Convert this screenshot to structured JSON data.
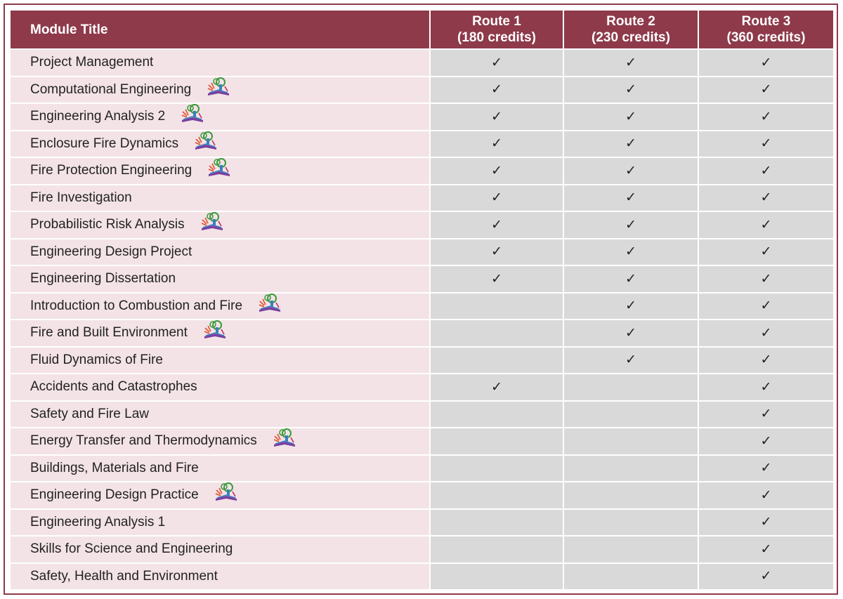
{
  "header": {
    "module_title": "Module Title",
    "routes": [
      {
        "line1": "Route 1",
        "line2": "(180 credits)"
      },
      {
        "line1": "Route 2",
        "line2": "(230 credits)"
      },
      {
        "line1": "Route 3",
        "line2": "(360 credits)"
      }
    ]
  },
  "check_glyph": "✓",
  "icon_name": "book-tree-icon",
  "colors": {
    "header_bg": "#8e3a4a",
    "name_bg": "#f3e3e6",
    "check_bg": "#d9d9d9"
  },
  "modules": [
    {
      "title": "Project Management",
      "icon": false,
      "r1": "✓",
      "r2": "✓",
      "r3": "✓"
    },
    {
      "title": "Computational Engineering",
      "icon": true,
      "r1": "✓",
      "r2": "✓",
      "r3": "✓"
    },
    {
      "title": "Engineering Analysis 2",
      "icon": true,
      "r1": "✓",
      "r2": "✓",
      "r3": "✓"
    },
    {
      "title": "Enclosure Fire Dynamics",
      "icon": true,
      "r1": "✓",
      "r2": "✓",
      "r3": "✓"
    },
    {
      "title": "Fire Protection Engineering",
      "icon": true,
      "r1": "✓",
      "r2": "✓",
      "r3": "✓"
    },
    {
      "title": "Fire Investigation",
      "icon": false,
      "r1": "✓",
      "r2": "✓",
      "r3": "✓"
    },
    {
      "title": "Probabilistic Risk Analysis",
      "icon": true,
      "r1": "✓",
      "r2": "✓",
      "r3": "✓"
    },
    {
      "title": "Engineering Design Project",
      "icon": false,
      "r1": "✓",
      "r2": "✓",
      "r3": "✓"
    },
    {
      "title": "Engineering Dissertation",
      "icon": false,
      "r1": "✓",
      "r2": "✓",
      "r3": "✓"
    },
    {
      "title": "Introduction to Combustion and Fire",
      "icon": true,
      "r1": "",
      "r2": "✓",
      "r3": "✓"
    },
    {
      "title": "Fire and Built Environment",
      "icon": true,
      "r1": "",
      "r2": "✓",
      "r3": "✓"
    },
    {
      "title": "Fluid Dynamics of Fire",
      "icon": false,
      "r1": "",
      "r2": "✓",
      "r3": "✓"
    },
    {
      "title": "Accidents and Catastrophes",
      "icon": false,
      "r1": "✓",
      "r2": "",
      "r3": "✓"
    },
    {
      "title": "Safety and Fire Law",
      "icon": false,
      "r1": "",
      "r2": "",
      "r3": "✓"
    },
    {
      "title": "Energy Transfer and Thermodynamics",
      "icon": true,
      "r1": "",
      "r2": "",
      "r3": "✓"
    },
    {
      "title": "Buildings, Materials and Fire",
      "icon": false,
      "r1": "",
      "r2": "",
      "r3": "✓"
    },
    {
      "title": "Engineering Design Practice",
      "icon": true,
      "r1": "",
      "r2": "",
      "r3": "✓"
    },
    {
      "title": "Engineering Analysis 1",
      "icon": false,
      "r1": "",
      "r2": "",
      "r3": "✓"
    },
    {
      "title": "Skills for Science and Engineering",
      "icon": false,
      "r1": "",
      "r2": "",
      "r3": "✓"
    },
    {
      "title": "Safety, Health and Environment",
      "icon": false,
      "r1": "",
      "r2": "",
      "r3": "✓"
    }
  ]
}
